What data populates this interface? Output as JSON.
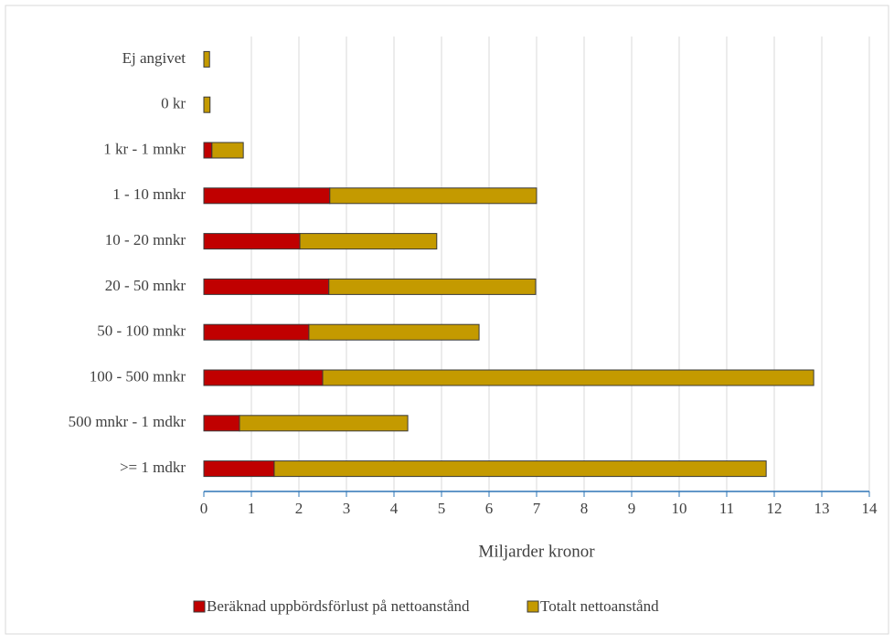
{
  "chart_data": {
    "type": "stacked_bar",
    "orientation": "horizontal",
    "x_label": "Miljarder kronor",
    "categories": [
      "Ej angivet",
      "0 kr",
      "1 kr - 1 mnkr",
      "1 - 10 mnkr",
      "10 - 20 mnkr",
      "20 - 50 mnkr",
      "50 - 100 mnkr",
      "100 - 500 mnkr",
      "500 mnkr - 1 mdkr",
      ">= 1 mdkr"
    ],
    "series": [
      {
        "name": "Beräknad uppbördsförlust på nettoanstånd",
        "color": "#c00000",
        "values": [
          0,
          0,
          0.17,
          2.65,
          2.02,
          2.63,
          2.21,
          2.5,
          0.75,
          1.48
        ]
      },
      {
        "name": "Totalt nettoanstånd",
        "color": "#c49a00",
        "values": [
          0.12,
          0.13,
          0.66,
          4.35,
          2.88,
          4.35,
          3.58,
          10.33,
          3.54,
          10.35
        ]
      }
    ],
    "xlim": [
      0,
      14
    ],
    "xticks": [
      0,
      1,
      2,
      3,
      4,
      5,
      6,
      7,
      8,
      9,
      10,
      11,
      12,
      13,
      14
    ],
    "grid": true,
    "legend": "bottom"
  }
}
